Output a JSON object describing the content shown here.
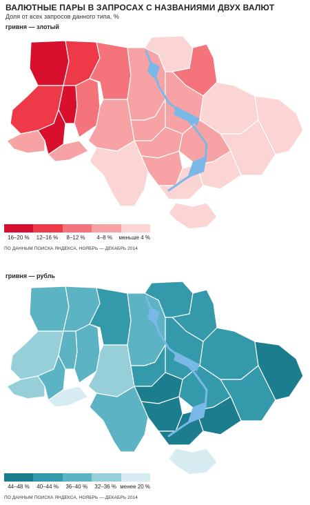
{
  "title": "ВАЛЮТНЫЕ ПАРЫ В ЗАПРОСАХ С НАЗВАНИЯМИ ДВУХ ВАЛЮТ",
  "subtitle": "Доля от всех запросов данного типа, %",
  "maps": [
    {
      "label": "гривня — злотый",
      "legend": [
        {
          "label": "16–20 %",
          "color": "#d8102e"
        },
        {
          "label": "12–16 %",
          "color": "#ee3a48"
        },
        {
          "label": "8–12 %",
          "color": "#f5737a"
        },
        {
          "label": "4–8 %",
          "color": "#f7a3a6"
        },
        {
          "label": "меньше 4 %",
          "color": "#fbd4d4"
        }
      ],
      "source": "ПО ДАННЫМ ПОИСКА ЯНДЕКСА, НОЯБРЬ — ДЕКАБРЬ 2014"
    },
    {
      "label": "гривня — рубль",
      "legend": [
        {
          "label": "44–48 %",
          "color": "#1b7d8e"
        },
        {
          "label": "40–44 %",
          "color": "#3499aa"
        },
        {
          "label": "36–40 %",
          "color": "#5cb3c3"
        },
        {
          "label": "32–36 %",
          "color": "#97cfd9"
        },
        {
          "label": "менее 20 %",
          "color": "#d6ecf0"
        }
      ],
      "source": "ПО ДАННЫМ ПОИСКА ЯНДЕКСА, НОЯБРЬ — ДЕКАБРЬ 2014"
    }
  ],
  "water_color": "#7ab8e8"
}
